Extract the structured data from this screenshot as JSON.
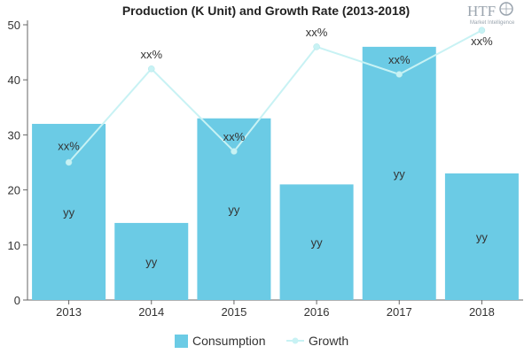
{
  "logo": {
    "brand": "HTF",
    "tagline": "Market Intelligence"
  },
  "chart_data": {
    "type": "bar",
    "title": "Production (K Unit) and Growth Rate (2013-2018)",
    "xlabel": "",
    "ylabel": "",
    "categories": [
      "2013",
      "2014",
      "2015",
      "2016",
      "2017",
      "2018"
    ],
    "ylim": [
      0,
      50
    ],
    "yticks": [
      0,
      10,
      20,
      30,
      40,
      50
    ],
    "grid": false,
    "legend_position": "bottom",
    "series": [
      {
        "name": "Consumption",
        "type": "bar",
        "color": "#6bcbe5",
        "values": [
          32,
          14,
          33,
          21,
          46,
          23
        ],
        "labels": [
          "yy",
          "yy",
          "yy",
          "yy",
          "yy",
          "yy"
        ]
      },
      {
        "name": "Growth",
        "type": "line",
        "color": "#c8f2f4",
        "values": [
          25,
          42,
          27,
          46,
          41,
          49
        ],
        "labels": [
          "xx%",
          "xx%",
          "xx%",
          "xx%",
          "xx%",
          "xx%"
        ]
      }
    ]
  }
}
